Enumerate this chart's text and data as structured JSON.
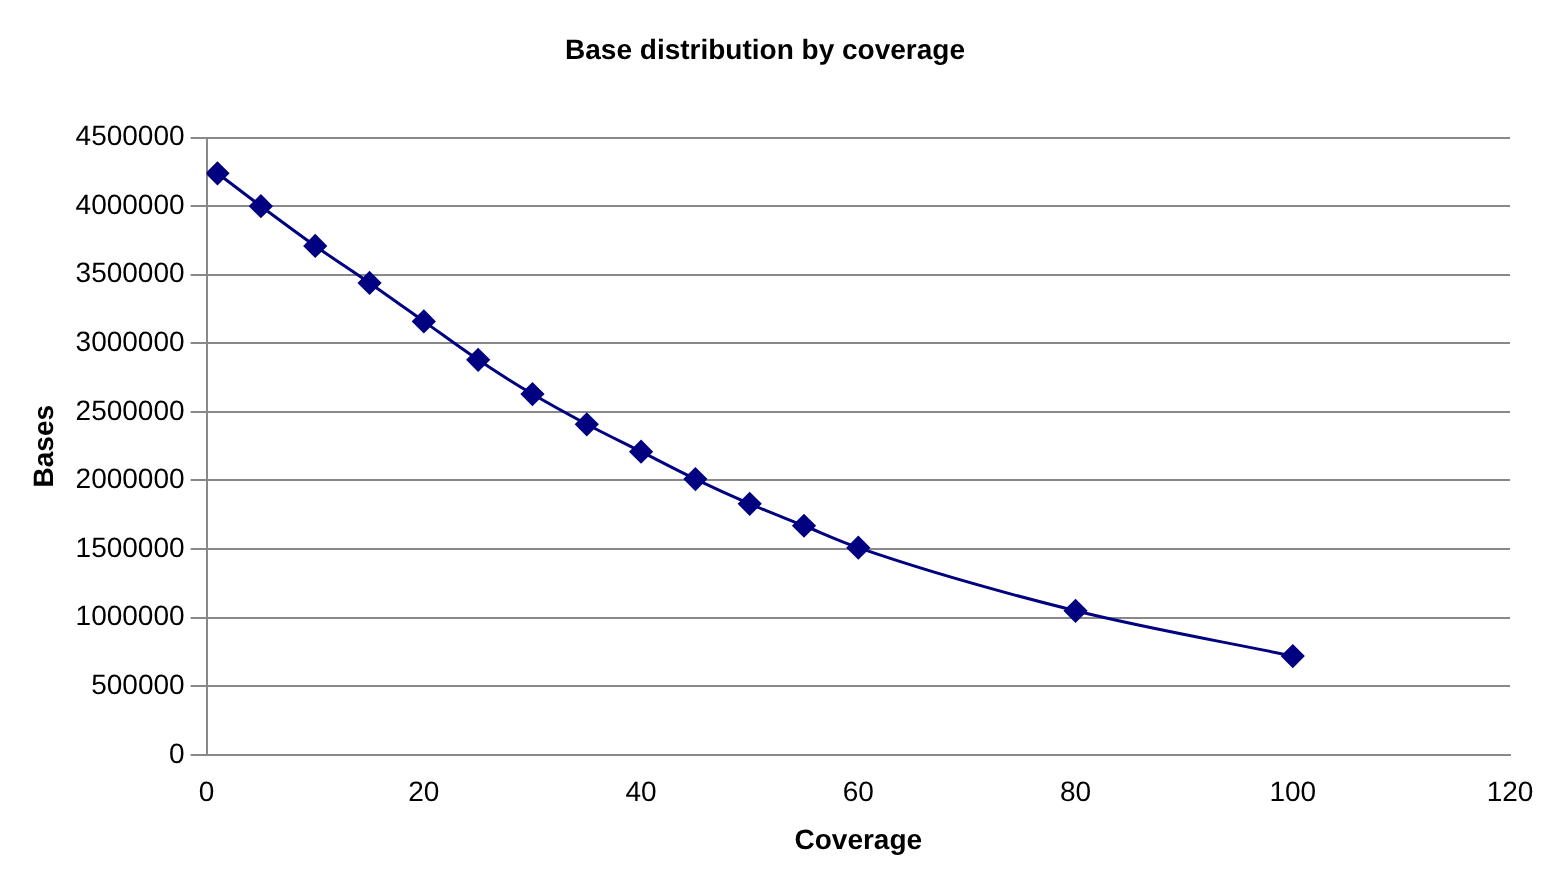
{
  "chart_data": {
    "type": "line",
    "title": "Base distribution by coverage",
    "xlabel": "Coverage",
    "ylabel": "Bases",
    "x": [
      1,
      5,
      10,
      15,
      20,
      25,
      30,
      35,
      40,
      45,
      50,
      55,
      60,
      80,
      100
    ],
    "series": [
      {
        "color": "#000080",
        "values": [
          4240000,
          4000000,
          3710000,
          3440000,
          3160000,
          2880000,
          2630000,
          2410000,
          2210000,
          2010000,
          1830000,
          1670000,
          1510000,
          1050000,
          720000
        ]
      }
    ],
    "xlim": [
      0,
      120
    ],
    "xticks": [
      0,
      20,
      40,
      60,
      80,
      100,
      120
    ],
    "ylim": [
      0,
      4500000
    ],
    "yticks": [
      0,
      500000,
      1000000,
      1500000,
      2000000,
      2500000,
      3000000,
      3500000,
      4000000,
      4500000
    ],
    "grid": "y",
    "legend": false,
    "marker": "diamond",
    "line_style": "solid"
  }
}
